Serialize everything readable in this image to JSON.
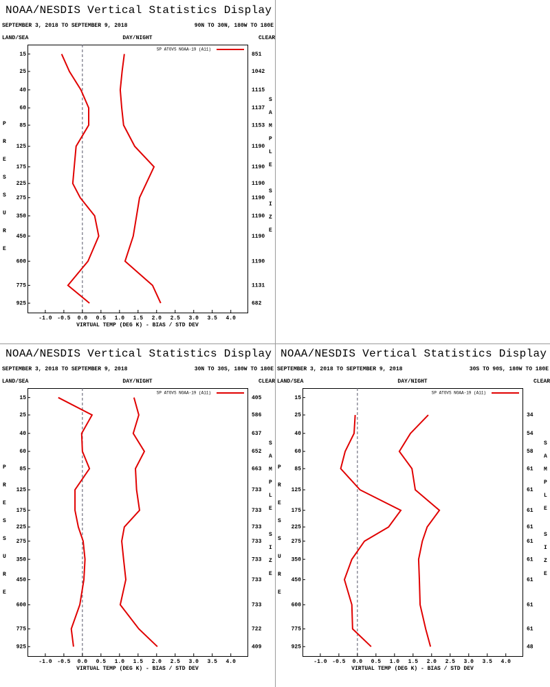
{
  "chart_data": [
    {
      "type": "line",
      "title": "NOAA/NESDIS Vertical Statistics Display",
      "subtitle": "SEPTEMBER 3, 2018 TO SEPTEMBER 9, 2018",
      "region": "90N TO 30N, 180W TO 180E",
      "land_sea": "LAND/SEA",
      "day_night": "DAY/NIGHT",
      "sky": "CLEAR",
      "ylabel": "PRESSURE",
      "y2label": "SAMPLE SIZE",
      "xlabel": "VIRTUAL TEMP (DEG K) - BIAS / STD DEV",
      "categories": [
        15,
        25,
        40,
        60,
        85,
        125,
        175,
        225,
        275,
        350,
        450,
        600,
        775,
        925
      ],
      "sample_sizes": [
        851,
        1042,
        1115,
        1137,
        1153,
        1190,
        1190,
        1190,
        1190,
        1190,
        1190,
        1190,
        1131,
        682
      ],
      "series": [
        {
          "name": "SP ATOVS NOAA-19 (A11)",
          "color": "#e00000",
          "values": [
            -0.56,
            -0.35,
            -0.04,
            0.17,
            0.17,
            -0.17,
            -0.22,
            -0.26,
            -0.06,
            0.33,
            0.44,
            0.15,
            -0.39,
            0.19
          ],
          "std_dev": [
            1.13,
            1.07,
            1.02,
            1.06,
            1.11,
            1.41,
            1.93,
            1.72,
            1.54,
            1.46,
            1.37,
            1.15,
            1.89,
            2.11
          ]
        }
      ],
      "xlim": [
        -1.48,
        4.45
      ],
      "ylim": [
        11,
        1013
      ],
      "xticks": [
        {
          "value": -1,
          "label": "-1.0"
        },
        -0.5,
        {
          "value": 0,
          "label": "0.0"
        },
        0.5,
        {
          "value": 1,
          "label": "1.0"
        },
        1.5,
        {
          "value": 2,
          "label": "2.0"
        },
        2.5,
        {
          "value": 3,
          "label": "3.0"
        },
        3.5,
        {
          "value": 4,
          "label": "4.0"
        }
      ]
    },
    {
      "type": "line",
      "title": "NOAA/NESDIS Vertical Statistics Display",
      "subtitle": "SEPTEMBER 3, 2018 TO SEPTEMBER 9, 2018",
      "region": "30N TO 30S, 180W TO 180E",
      "land_sea": "LAND/SEA",
      "day_night": "DAY/NIGHT",
      "sky": "CLEAR",
      "ylabel": "PRESSURE",
      "y2label": "SAMPLE SIZE",
      "xlabel": "VIRTUAL TEMP (DEG K) - BIAS / STD DEV",
      "categories": [
        15,
        25,
        40,
        60,
        85,
        125,
        175,
        225,
        275,
        350,
        450,
        600,
        775,
        925
      ],
      "sample_sizes": [
        405,
        586,
        637,
        652,
        663,
        733,
        733,
        733,
        733,
        733,
        733,
        733,
        722,
        409
      ],
      "series": [
        {
          "name": "SP ATOVS NOAA-19 (A11)",
          "color": "#e00000",
          "values": [
            -0.65,
            0.26,
            -0.02,
            0,
            0.19,
            -0.2,
            -0.2,
            -0.11,
            0.02,
            0.07,
            0.04,
            -0.07,
            -0.3,
            -0.24
          ],
          "std_dev": [
            1.39,
            1.52,
            1.37,
            1.67,
            1.43,
            1.46,
            1.54,
            1.13,
            1.06,
            1.11,
            1.17,
            1.02,
            1.52,
            2.02
          ]
        }
      ],
      "xlim": [
        -1.48,
        4.45
      ],
      "ylim": [
        11,
        1013
      ],
      "xticks": [
        {
          "value": -1,
          "label": "-1.0"
        },
        -0.5,
        {
          "value": 0,
          "label": "0.0"
        },
        0.5,
        {
          "value": 1,
          "label": "1.0"
        },
        1.5,
        {
          "value": 2,
          "label": "2.0"
        },
        2.5,
        {
          "value": 3,
          "label": "3.0"
        },
        3.5,
        {
          "value": 4,
          "label": "4.0"
        }
      ]
    },
    {
      "type": "line",
      "title": "NOAA/NESDIS Vertical Statistics Display",
      "subtitle": "SEPTEMBER 3, 2018 TO SEPTEMBER 9, 2018",
      "region": "30S TO 90S, 180W TO 180E",
      "land_sea": "LAND/SEA",
      "day_night": "DAY/NIGHT",
      "sky": "CLEAR",
      "ylabel": "PRESSURE",
      "y2label": "SAMPLE SIZE",
      "xlabel": "VIRTUAL TEMP (DEG K) - BIAS / STD DEV",
      "categories": [
        15,
        25,
        40,
        60,
        85,
        125,
        175,
        225,
        275,
        350,
        450,
        600,
        775,
        925
      ],
      "sample_sizes": [
        null,
        34,
        54,
        58,
        61,
        61,
        61,
        61,
        61,
        61,
        61,
        61,
        61,
        48
      ],
      "series": [
        {
          "name": "SP ATOVS NOAA-19 (A11)",
          "color": "#e00000",
          "values": [
            null,
            -0.06,
            -0.09,
            -0.33,
            -0.45,
            0.07,
            1.17,
            0.84,
            0.19,
            -0.15,
            -0.35,
            -0.15,
            -0.13,
            0.37
          ],
          "std_dev": [
            null,
            1.91,
            1.43,
            1.13,
            1.47,
            1.56,
            2.21,
            1.88,
            1.75,
            1.65,
            1.67,
            1.69,
            1.84,
            1.97
          ]
        }
      ],
      "xlim": [
        -1.48,
        4.45
      ],
      "ylim": [
        11,
        1013
      ],
      "xticks": [
        {
          "value": -1,
          "label": "-1.0"
        },
        -0.5,
        {
          "value": 0,
          "label": "0.0"
        },
        0.5,
        {
          "value": 1,
          "label": "1.0"
        },
        1.5,
        {
          "value": 2,
          "label": "2.0"
        },
        2.5,
        {
          "value": 3,
          "label": "3.0"
        },
        3.5,
        {
          "value": 4,
          "label": "4.0"
        }
      ]
    }
  ]
}
